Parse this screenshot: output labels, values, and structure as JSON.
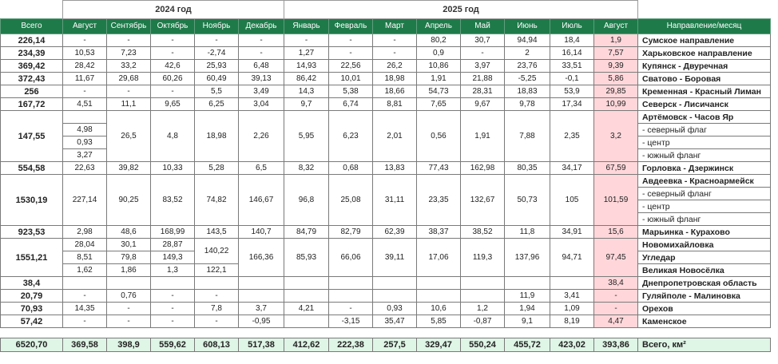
{
  "years": {
    "y2024": "2024 год",
    "y2025": "2025 год"
  },
  "headers": {
    "total": "Всего",
    "months": [
      "Август",
      "Сентябрь",
      "Октябрь",
      "Ноябрь",
      "Декабрь",
      "Январь",
      "Февраль",
      "Март",
      "Апрель",
      "Май",
      "Июнь",
      "Июль",
      "Август"
    ],
    "direction": "Направление/месяц"
  },
  "rows": [
    {
      "total": "226,14",
      "cells": [
        "-",
        "-",
        "-",
        "-",
        "-",
        "-",
        "-",
        "-",
        "80,2",
        "30,7",
        "94,94",
        "18,4",
        "1,9"
      ],
      "dir": "Сумское направление"
    },
    {
      "total": "234,39",
      "cells": [
        "10,53",
        "7,23",
        "-",
        "-2,74",
        "-",
        "1,27",
        "-",
        "-",
        "0,9",
        "-",
        "2",
        "16,14",
        "7,57"
      ],
      "dir": "Харьковское направление"
    },
    {
      "total": "369,42",
      "cells": [
        "28,42",
        "33,2",
        "42,6",
        "25,93",
        "6,48",
        "14,93",
        "22,56",
        "26,2",
        "10,86",
        "3,97",
        "23,76",
        "33,51",
        "9,39"
      ],
      "dir": "Купянск - Двуречная"
    },
    {
      "total": "372,43",
      "cells": [
        "11,67",
        "29,68",
        "60,26",
        "60,49",
        "39,13",
        "86,42",
        "10,01",
        "18,98",
        "1,91",
        "21,88",
        "-5,25",
        "-0,1",
        "5,86"
      ],
      "dir": "Сватово - Боровая"
    },
    {
      "total": "256",
      "cells": [
        "-",
        "-",
        "-",
        "5,5",
        "3,49",
        "14,3",
        "5,38",
        "18,66",
        "54,73",
        "28,31",
        "18,83",
        "53,9",
        "29,85"
      ],
      "dir": "Кременная - Красный Лиман"
    },
    {
      "total": "167,72",
      "cells": [
        "4,51",
        "11,1",
        "9,65",
        "6,25",
        "3,04",
        "9,7",
        "6,74",
        "8,81",
        "7,65",
        "9,67",
        "9,78",
        "17,34",
        "10,99"
      ],
      "dir": "Северск - Лисичанск"
    }
  ],
  "artemovsk": {
    "total": "147,55",
    "aug24": [
      "4,98",
      "0,93",
      "3,27"
    ],
    "cells": [
      "26,5",
      "4,8",
      "18,98",
      "2,26",
      "5,95",
      "6,23",
      "2,01",
      "0,56",
      "1,91",
      "7,88",
      "2,35",
      "3,2"
    ],
    "dirs": [
      "Артёмовск - Часов Яр",
      "- северный флаг",
      "- центр",
      "- южный фланг"
    ]
  },
  "gorlovka": {
    "total": "554,58",
    "cells": [
      "22,63",
      "39,82",
      "10,33",
      "5,28",
      "6,5",
      "8,32",
      "0,68",
      "13,83",
      "77,43",
      "162,98",
      "80,35",
      "34,17",
      "67,59"
    ],
    "dir": "Горловка - Дзержинск"
  },
  "avdeevka": {
    "total": "1530,19",
    "cells": [
      "227,14",
      "90,25",
      "83,52",
      "74,82",
      "146,67",
      "96,8",
      "25,08",
      "31,11",
      "23,35",
      "132,67",
      "50,73",
      "105",
      "101,59"
    ],
    "dirs": [
      "Авдеевка - Красноармейск",
      "- северный фланг",
      "- центр",
      "- южный фланг"
    ]
  },
  "marinka": {
    "total": "923,53",
    "cells": [
      "2,98",
      "48,6",
      "168,99",
      "143,5",
      "140,7",
      "84,79",
      "82,79",
      "62,39",
      "38,37",
      "38,52",
      "11,8",
      "34,91",
      "15,6"
    ],
    "dir": "Марьинка - Курахово"
  },
  "novomikh": {
    "total": "1551,21",
    "aug24": [
      "28,04",
      "8,51",
      "1,62"
    ],
    "sep24": [
      "30,1",
      "79,8",
      "1,86"
    ],
    "oct24": [
      "28,87",
      "149,3",
      "1,3"
    ],
    "nov24top": "140,22",
    "nov24bot": "122,1",
    "cells": [
      "166,36",
      "85,93",
      "66,06",
      "39,11",
      "17,06",
      "119,3",
      "137,96",
      "94,71",
      "97,45"
    ],
    "dirs": [
      "Новомихайловка",
      "Угледар",
      "Великая Новосёлка"
    ]
  },
  "dnepr": {
    "total": "38,4",
    "aug25": "38,4",
    "dir": "Днепропетровская область"
  },
  "rows2": [
    {
      "total": "20,79",
      "cells": [
        "-",
        "0,76",
        "-",
        "-",
        "",
        "",
        "",
        "",
        "",
        "",
        "11,9",
        "3,41",
        "-"
      ],
      "dir": "Гуляйполе - Малиновка"
    },
    {
      "total": "70,93",
      "cells": [
        "14,35",
        "-",
        "-",
        "7,8",
        "3,7",
        "4,21",
        "-",
        "0,93",
        "10,6",
        "1,2",
        "1,94",
        "1,09",
        "-"
      ],
      "dir": "Орехов"
    },
    {
      "total": "57,42",
      "cells": [
        "-",
        "-",
        "-",
        "-",
        "-0,95",
        "",
        "-3,15",
        "35,47",
        "5,85",
        "-0,87",
        "9,1",
        "8,19",
        "4,47"
      ],
      "dir": "Каменское"
    }
  ],
  "sum": {
    "total": "6520,70",
    "cells": [
      "369,58",
      "398,9",
      "559,62",
      "608,13",
      "517,38",
      "412,62",
      "222,38",
      "257,5",
      "329,47",
      "550,24",
      "455,72",
      "423,02",
      "393,86"
    ],
    "label": "Всего, км²"
  },
  "colors": {
    "header": "#1f7a4a",
    "highlight": "#ffd7da",
    "sum_row": "#dff5e6"
  }
}
